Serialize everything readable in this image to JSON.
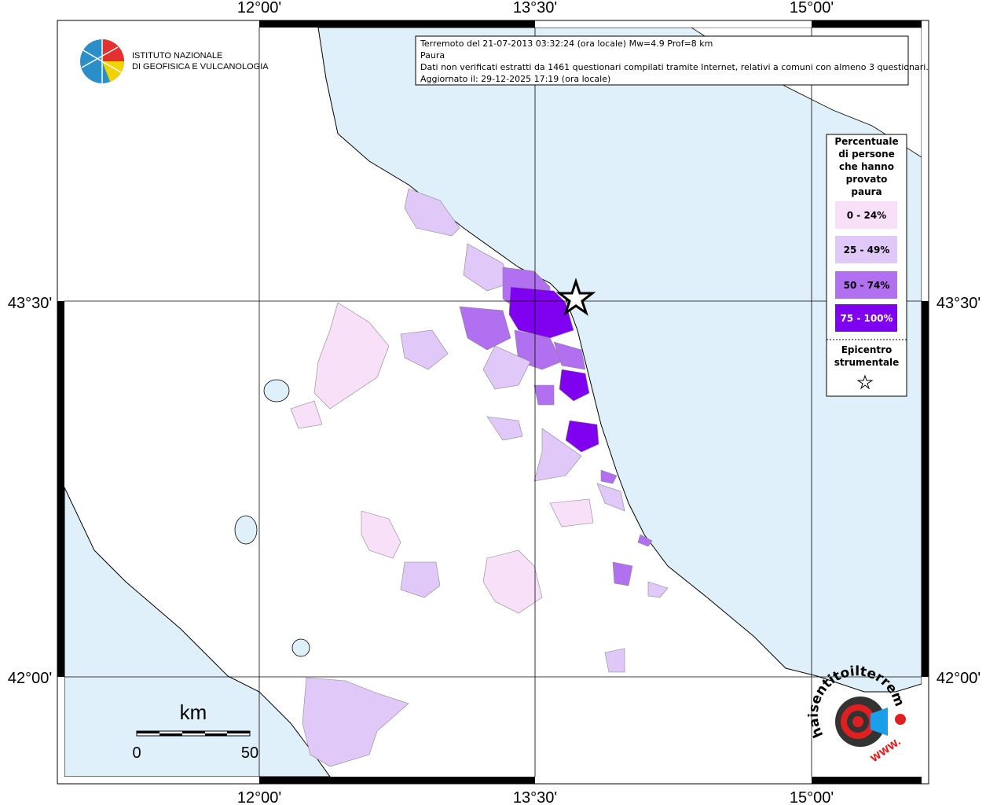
{
  "info_box": {
    "lines": [
      "Terremoto del 21-07-2013 03:32:24 (ora locale) Mw=4.9 Prof=8 km",
      "Paura",
      "Dati non verificati estratti da 1461 questionari compilati tramite Internet, relativi a comuni con almeno 3 questionari.",
      "Aggiornato il: 29-12-2025 17:19 (ora locale)"
    ]
  },
  "map": {
    "x_labels": [
      "12°00'",
      "13°30'",
      "15°00'"
    ],
    "y_labels": [
      "43°30'",
      "42°00'"
    ]
  },
  "legend": {
    "title_lines": [
      "Percentuale",
      "di persone",
      "che hanno",
      "provato",
      "paura"
    ],
    "classes": [
      {
        "label": "0 - 24%",
        "color": "#f8e0f8"
      },
      {
        "label": "25 - 49%",
        "color": "#e0c8f8"
      },
      {
        "label": "50 - 74%",
        "color": "#b070f0"
      },
      {
        "label": "75 - 100%",
        "color": "#8000f0"
      }
    ],
    "epicenter_lines": [
      "Epicentro",
      "strumentale"
    ]
  },
  "scale_bar": {
    "unit": "km",
    "start": "0",
    "end": "50"
  },
  "logo": {
    "lines": [
      "ISTITUTO NAZIONALE",
      "DI GEOFISICA E VULCANOLOGIA"
    ]
  },
  "badge": {
    "site": "haisentitoilterremoto.it",
    "prefix": "WWW."
  }
}
